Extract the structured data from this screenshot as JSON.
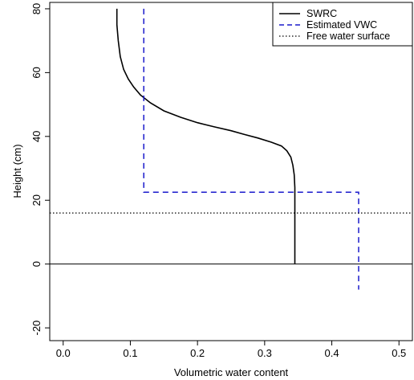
{
  "chart_data": {
    "type": "line",
    "xlabel": "Volumetric water content",
    "ylabel": "Height (cm)",
    "xlim": [
      -0.02,
      0.52
    ],
    "ylim": [
      -24,
      82
    ],
    "x_ticks": [
      0.0,
      0.1,
      0.2,
      0.3,
      0.4,
      0.5
    ],
    "x_tick_labels": [
      "0.0",
      "0.1",
      "0.2",
      "0.3",
      "0.4",
      "0.5"
    ],
    "y_ticks": [
      -20,
      0,
      20,
      40,
      60,
      80
    ],
    "y_tick_labels": [
      "-20",
      "0",
      "20",
      "40",
      "60",
      "80"
    ],
    "grid": false,
    "legend_position": "top-right",
    "series": [
      {
        "name": "SWRC",
        "style": "solid",
        "color": "#000000",
        "points": [
          [
            0.08,
            80
          ],
          [
            0.08,
            75
          ],
          [
            0.082,
            70
          ],
          [
            0.085,
            65
          ],
          [
            0.09,
            61
          ],
          [
            0.097,
            58
          ],
          [
            0.105,
            55.5
          ],
          [
            0.115,
            53
          ],
          [
            0.13,
            50.5
          ],
          [
            0.15,
            48
          ],
          [
            0.175,
            46
          ],
          [
            0.2,
            44.3
          ],
          [
            0.225,
            43
          ],
          [
            0.25,
            41.8
          ],
          [
            0.27,
            40.6
          ],
          [
            0.29,
            39.5
          ],
          [
            0.31,
            38.2
          ],
          [
            0.325,
            37
          ],
          [
            0.333,
            35.5
          ],
          [
            0.339,
            33.5
          ],
          [
            0.342,
            31
          ],
          [
            0.344,
            28
          ],
          [
            0.345,
            24
          ],
          [
            0.345,
            16
          ],
          [
            0.345,
            0
          ]
        ]
      },
      {
        "name": "Estimated VWC",
        "style": "dashed",
        "color": "#1a1acc",
        "points": [
          [
            0.12,
            80
          ],
          [
            0.12,
            22.5
          ],
          [
            0.44,
            22.5
          ],
          [
            0.44,
            -8
          ]
        ]
      },
      {
        "name": "Free water surface",
        "style": "dotted",
        "color": "#000000",
        "type": "hline",
        "y": 16
      }
    ],
    "zero_line": {
      "y": 0,
      "style": "solid",
      "color": "#000000"
    }
  }
}
